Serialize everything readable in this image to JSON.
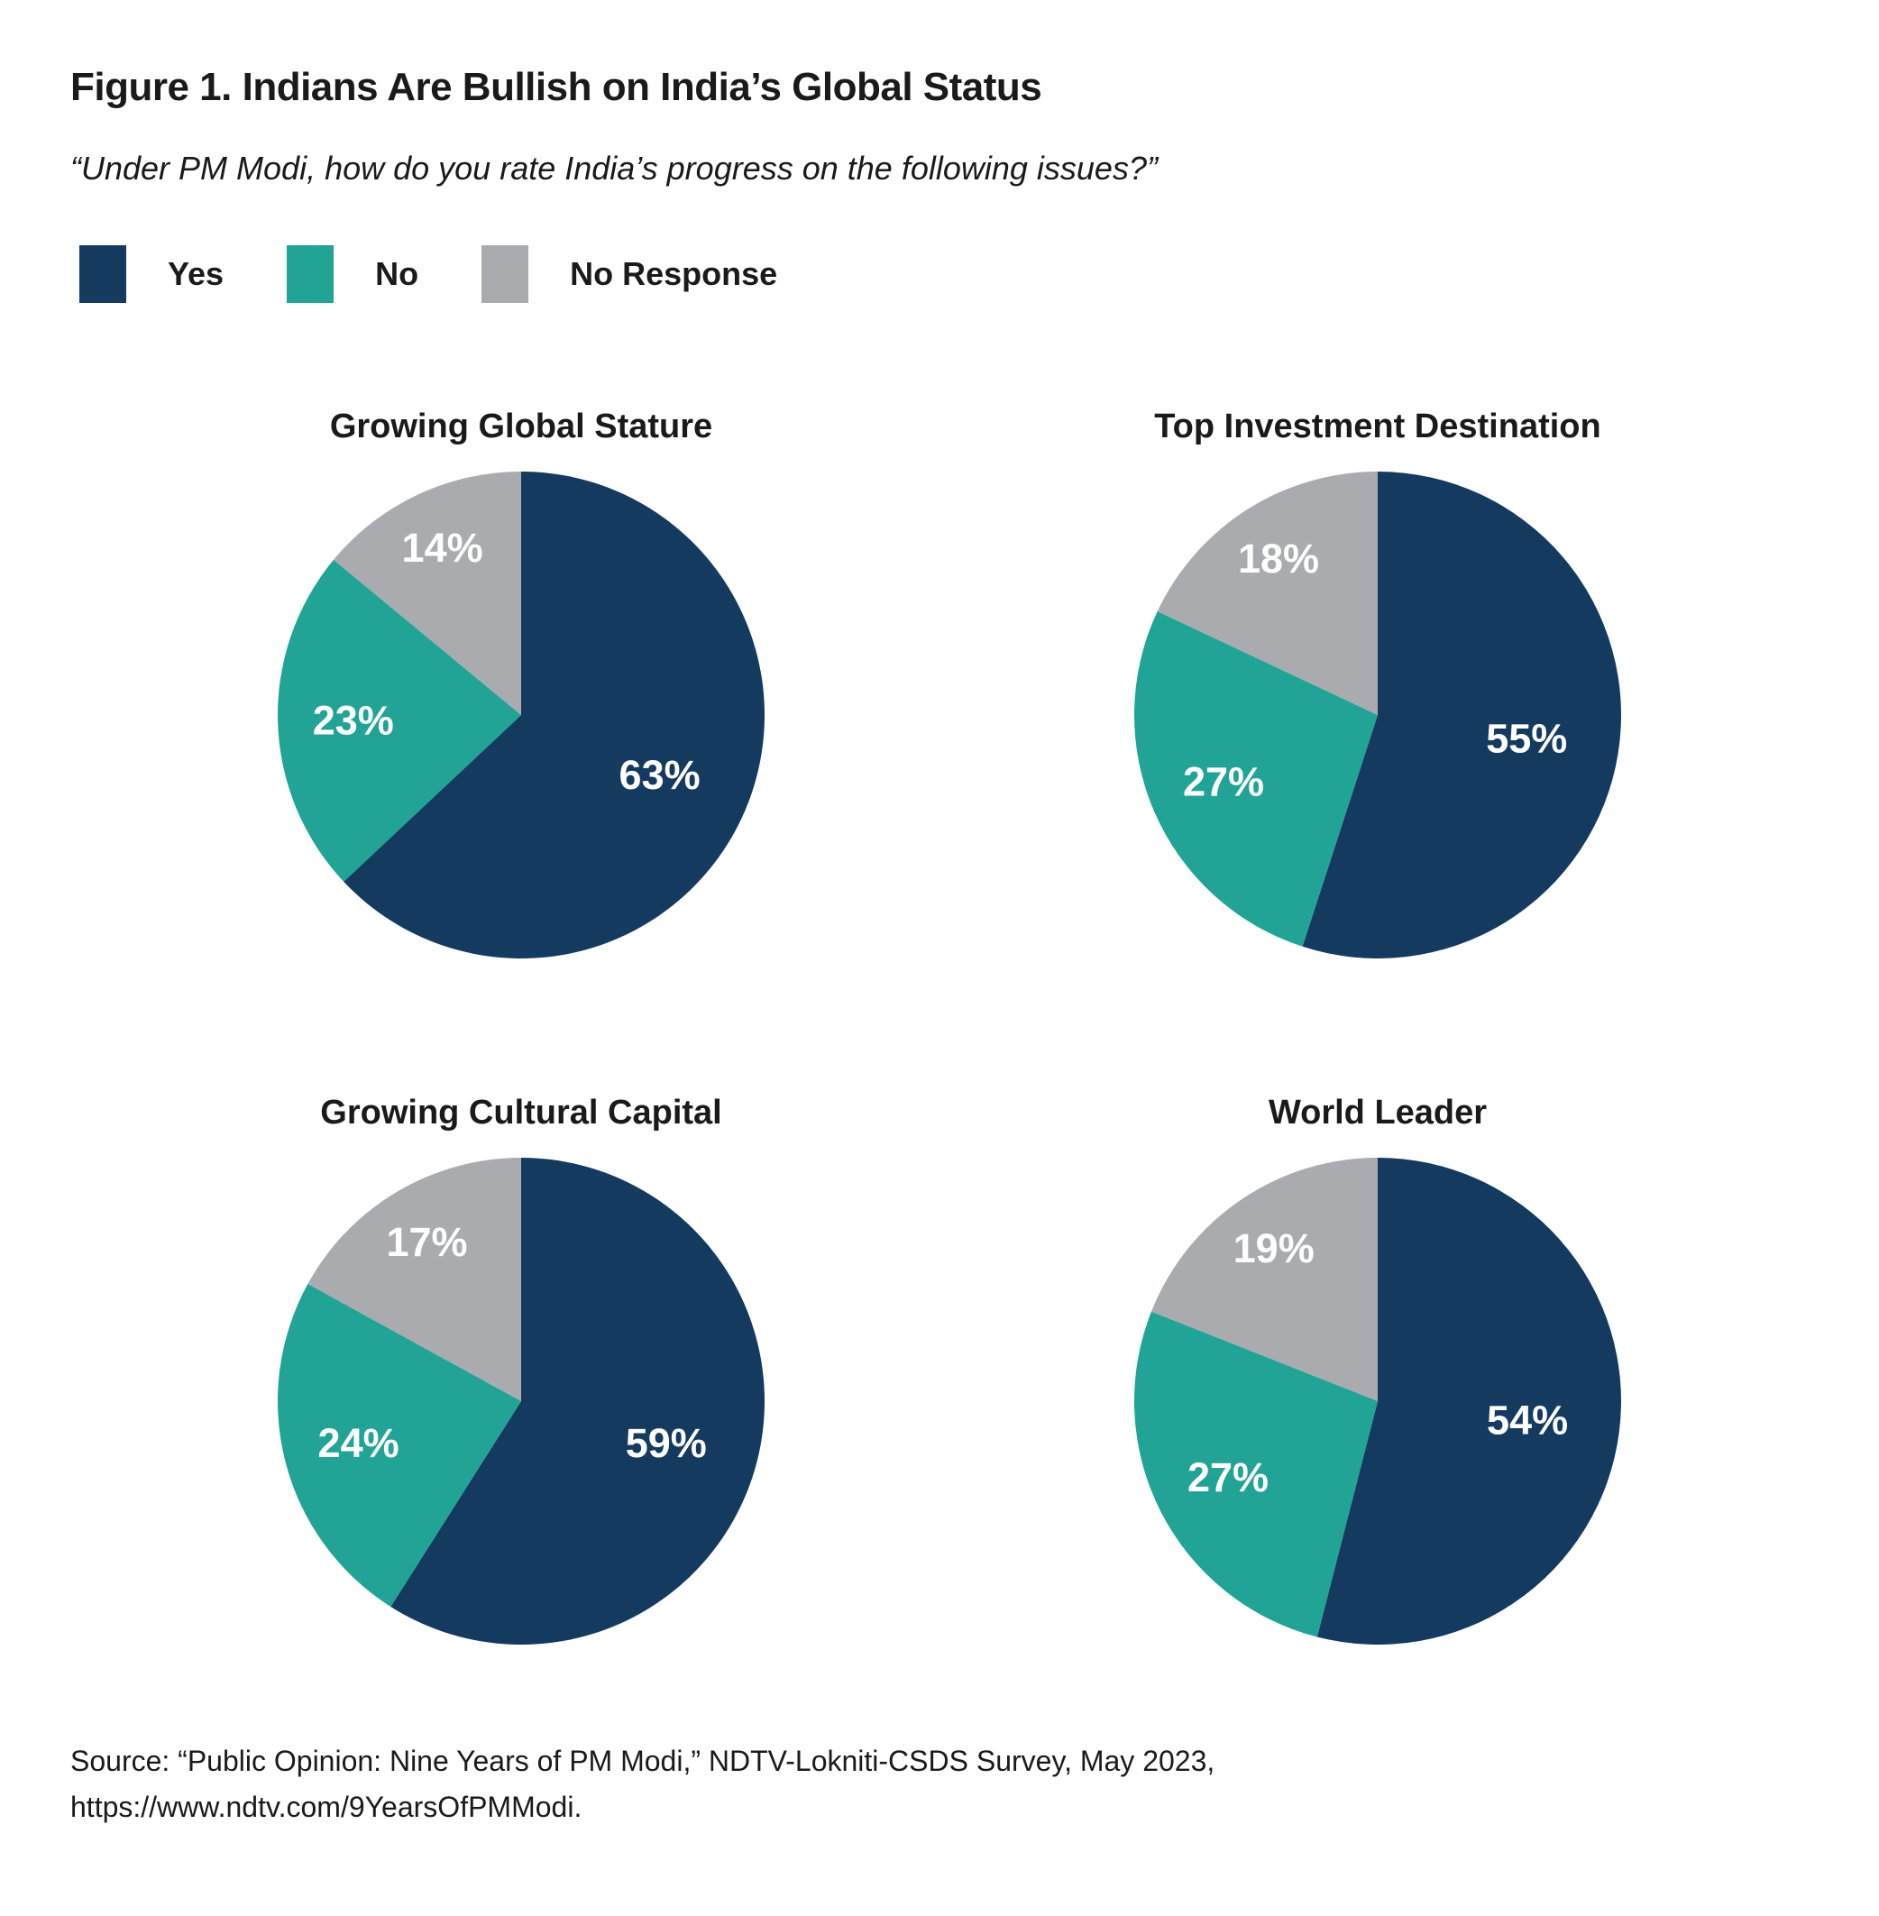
{
  "figure": {
    "title": "Figure 1. Indians Are Bullish on India’s Global Status",
    "subtitle": "“Under PM Modi, how do you rate India’s progress on the following issues?”",
    "source_line1": "Source: “Public Opinion: Nine Years of PM Modi,” NDTV-Lokniti-CSDS Survey, May 2023,",
    "source_line2": "https://www.ndtv.com/9YearsOfPMModi."
  },
  "palette": {
    "yes": "#143A60",
    "no": "#21A496",
    "no_response": "#A9ABAE",
    "slice_label_text": "#FFFFFF"
  },
  "legend": {
    "items": [
      {
        "label": "Yes",
        "color": "#143A60"
      },
      {
        "label": "No",
        "color": "#21A496"
      },
      {
        "label": "No Response",
        "color": "#A9ABAE"
      }
    ]
  },
  "chart_data": [
    {
      "type": "pie",
      "title": "Growing Global Stature",
      "categories": [
        "Yes",
        "No",
        "No Response"
      ],
      "values": [
        63,
        23,
        14
      ],
      "labels": [
        "63%",
        "23%",
        "14%"
      ],
      "unit": "%",
      "start_angle": "12 o'clock",
      "direction": "clockwise",
      "legend_position": "top-shared"
    },
    {
      "type": "pie",
      "title": "Top Investment Destination",
      "categories": [
        "Yes",
        "No",
        "No Response"
      ],
      "values": [
        55,
        27,
        18
      ],
      "labels": [
        "55%",
        "27%",
        "18%"
      ],
      "unit": "%",
      "start_angle": "12 o'clock",
      "direction": "clockwise",
      "legend_position": "top-shared"
    },
    {
      "type": "pie",
      "title": "Growing Cultural Capital",
      "categories": [
        "Yes",
        "No",
        "No Response"
      ],
      "values": [
        59,
        24,
        17
      ],
      "labels": [
        "59%",
        "24%",
        "17%"
      ],
      "unit": "%",
      "start_angle": "12 o'clock",
      "direction": "clockwise",
      "legend_position": "top-shared"
    },
    {
      "type": "pie",
      "title": "World Leader",
      "categories": [
        "Yes",
        "No",
        "No Response"
      ],
      "values": [
        54,
        27,
        19
      ],
      "labels": [
        "54%",
        "27%",
        "19%"
      ],
      "unit": "%",
      "start_angle": "12 o'clock",
      "direction": "clockwise",
      "legend_position": "top-shared"
    }
  ]
}
